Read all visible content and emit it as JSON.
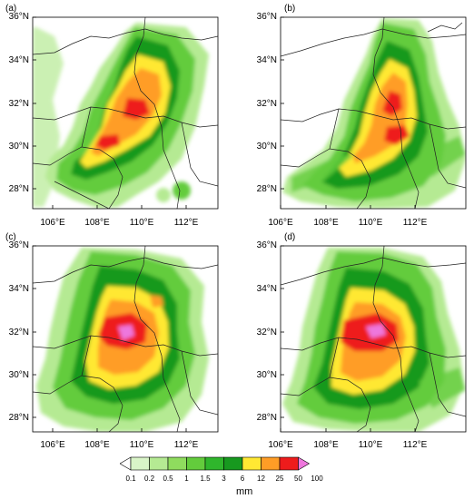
{
  "panels": [
    {
      "label": "(a)"
    },
    {
      "label": "(b)"
    },
    {
      "label": "(c)"
    },
    {
      "label": "(d)"
    }
  ],
  "axes": {
    "lat_labels": [
      "36°N",
      "34°N",
      "32°N",
      "30°N",
      "28°N"
    ],
    "lon_labels": [
      "106°E",
      "108°E",
      "110°E",
      "112°E"
    ]
  },
  "colorbar": {
    "levels": [
      "0.1",
      "0.2",
      "0.5",
      "1",
      "1.5",
      "3",
      "6",
      "12",
      "25",
      "50",
      "100"
    ],
    "colors": [
      "#ffffff",
      "#d9f5c8",
      "#b5ea93",
      "#8fdc5e",
      "#63cc3c",
      "#2fb62c",
      "#17991f",
      "#ffe833",
      "#ff9d26",
      "#ee1c1c",
      "#ee77dd"
    ],
    "unit": "mm"
  },
  "colors": {
    "light_green": "#b5ea93",
    "green": "#63cc3c",
    "dark_green": "#17991f",
    "yellow": "#ffe833",
    "orange": "#ff9d26",
    "red": "#ee1c1c",
    "pink": "#ee77dd",
    "border": "#222222"
  }
}
